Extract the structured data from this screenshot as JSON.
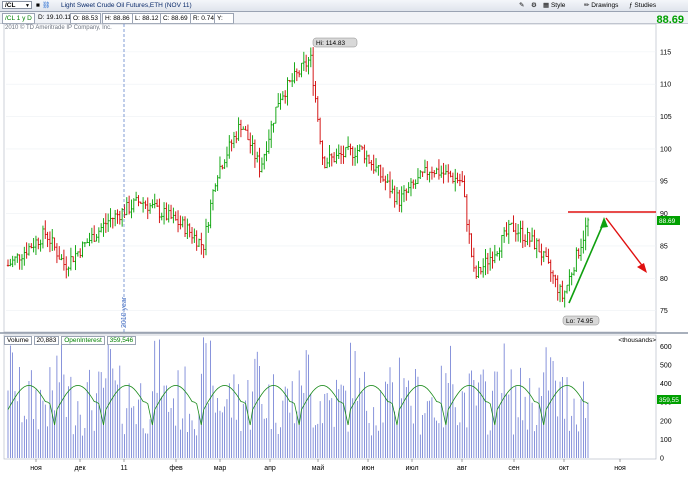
{
  "toolbar": {
    "symbol": "/CL",
    "description": "Light Sweet Crude Oil Futures,ETH (NOV 11)",
    "buttons": [
      "Style",
      "Drawings",
      "Studies"
    ],
    "last_price": "88.69"
  },
  "infobar": {
    "symbol_label": "/CL 1 y D",
    "date": "D: 19.10.11",
    "open": "O: 88.53",
    "high": "H: 88.86",
    "low": "L: 88.12",
    "close": "C: 88.69",
    "range": "R: 0.74",
    "y": "Y:"
  },
  "copyright": "2010 © TD Ameritrade IP Company, Inc.",
  "price_axis": {
    "ticks": [
      "75",
      "80",
      "85",
      "90",
      "95",
      "100",
      "105",
      "110",
      "115"
    ],
    "current_label": "88.69"
  },
  "volume_panel": {
    "label": "Volume",
    "volume_value": "20,883",
    "oi_label": "OpenInterest",
    "oi_value": "359,546",
    "units": "<thousands>",
    "ticks": [
      "0",
      "100",
      "200",
      "300",
      "400",
      "500",
      "600"
    ],
    "oi_current_label": "359,55"
  },
  "x_axis": {
    "labels": [
      "ноя",
      "дек",
      "11",
      "фев",
      "мар",
      "апр",
      "май",
      "июн",
      "июл",
      "авг",
      "сен",
      "окт",
      "ноя"
    ]
  },
  "annotations": {
    "high": "Hi: 114.83",
    "low": "Lo: 74.95",
    "year_marker": "2010 year"
  },
  "chart_data": {
    "type": "bar",
    "title": "Light Sweet Crude Oil Futures,ETH (NOV 11)",
    "ylim": [
      72,
      119
    ],
    "ohlc_keypoints": [
      {
        "t": 0.0,
        "price": 82
      },
      {
        "t": 0.06,
        "price": 87
      },
      {
        "t": 0.09,
        "price": 82
      },
      {
        "t": 0.16,
        "price": 89
      },
      {
        "t": 0.21,
        "price": 92
      },
      {
        "t": 0.28,
        "price": 88
      },
      {
        "t": 0.31,
        "price": 85
      },
      {
        "t": 0.33,
        "price": 96
      },
      {
        "t": 0.37,
        "price": 104
      },
      {
        "t": 0.4,
        "price": 97
      },
      {
        "t": 0.43,
        "price": 108
      },
      {
        "t": 0.48,
        "price": 114
      },
      {
        "t": 0.5,
        "price": 98
      },
      {
        "t": 0.56,
        "price": 100
      },
      {
        "t": 0.62,
        "price": 92
      },
      {
        "t": 0.67,
        "price": 97
      },
      {
        "t": 0.72,
        "price": 95
      },
      {
        "t": 0.74,
        "price": 80
      },
      {
        "t": 0.8,
        "price": 88
      },
      {
        "t": 0.84,
        "price": 85
      },
      {
        "t": 0.88,
        "price": 77
      },
      {
        "t": 0.92,
        "price": 88.69
      }
    ],
    "high": 114.83,
    "low": 74.95,
    "volume_ylim": [
      0,
      650
    ],
    "colors": {
      "up": "#00a000",
      "down": "#d00000",
      "volume": "#5566cc",
      "oi": "#1a8a1a",
      "arrow_up": "#00a000",
      "arrow_down": "#e01010"
    }
  }
}
